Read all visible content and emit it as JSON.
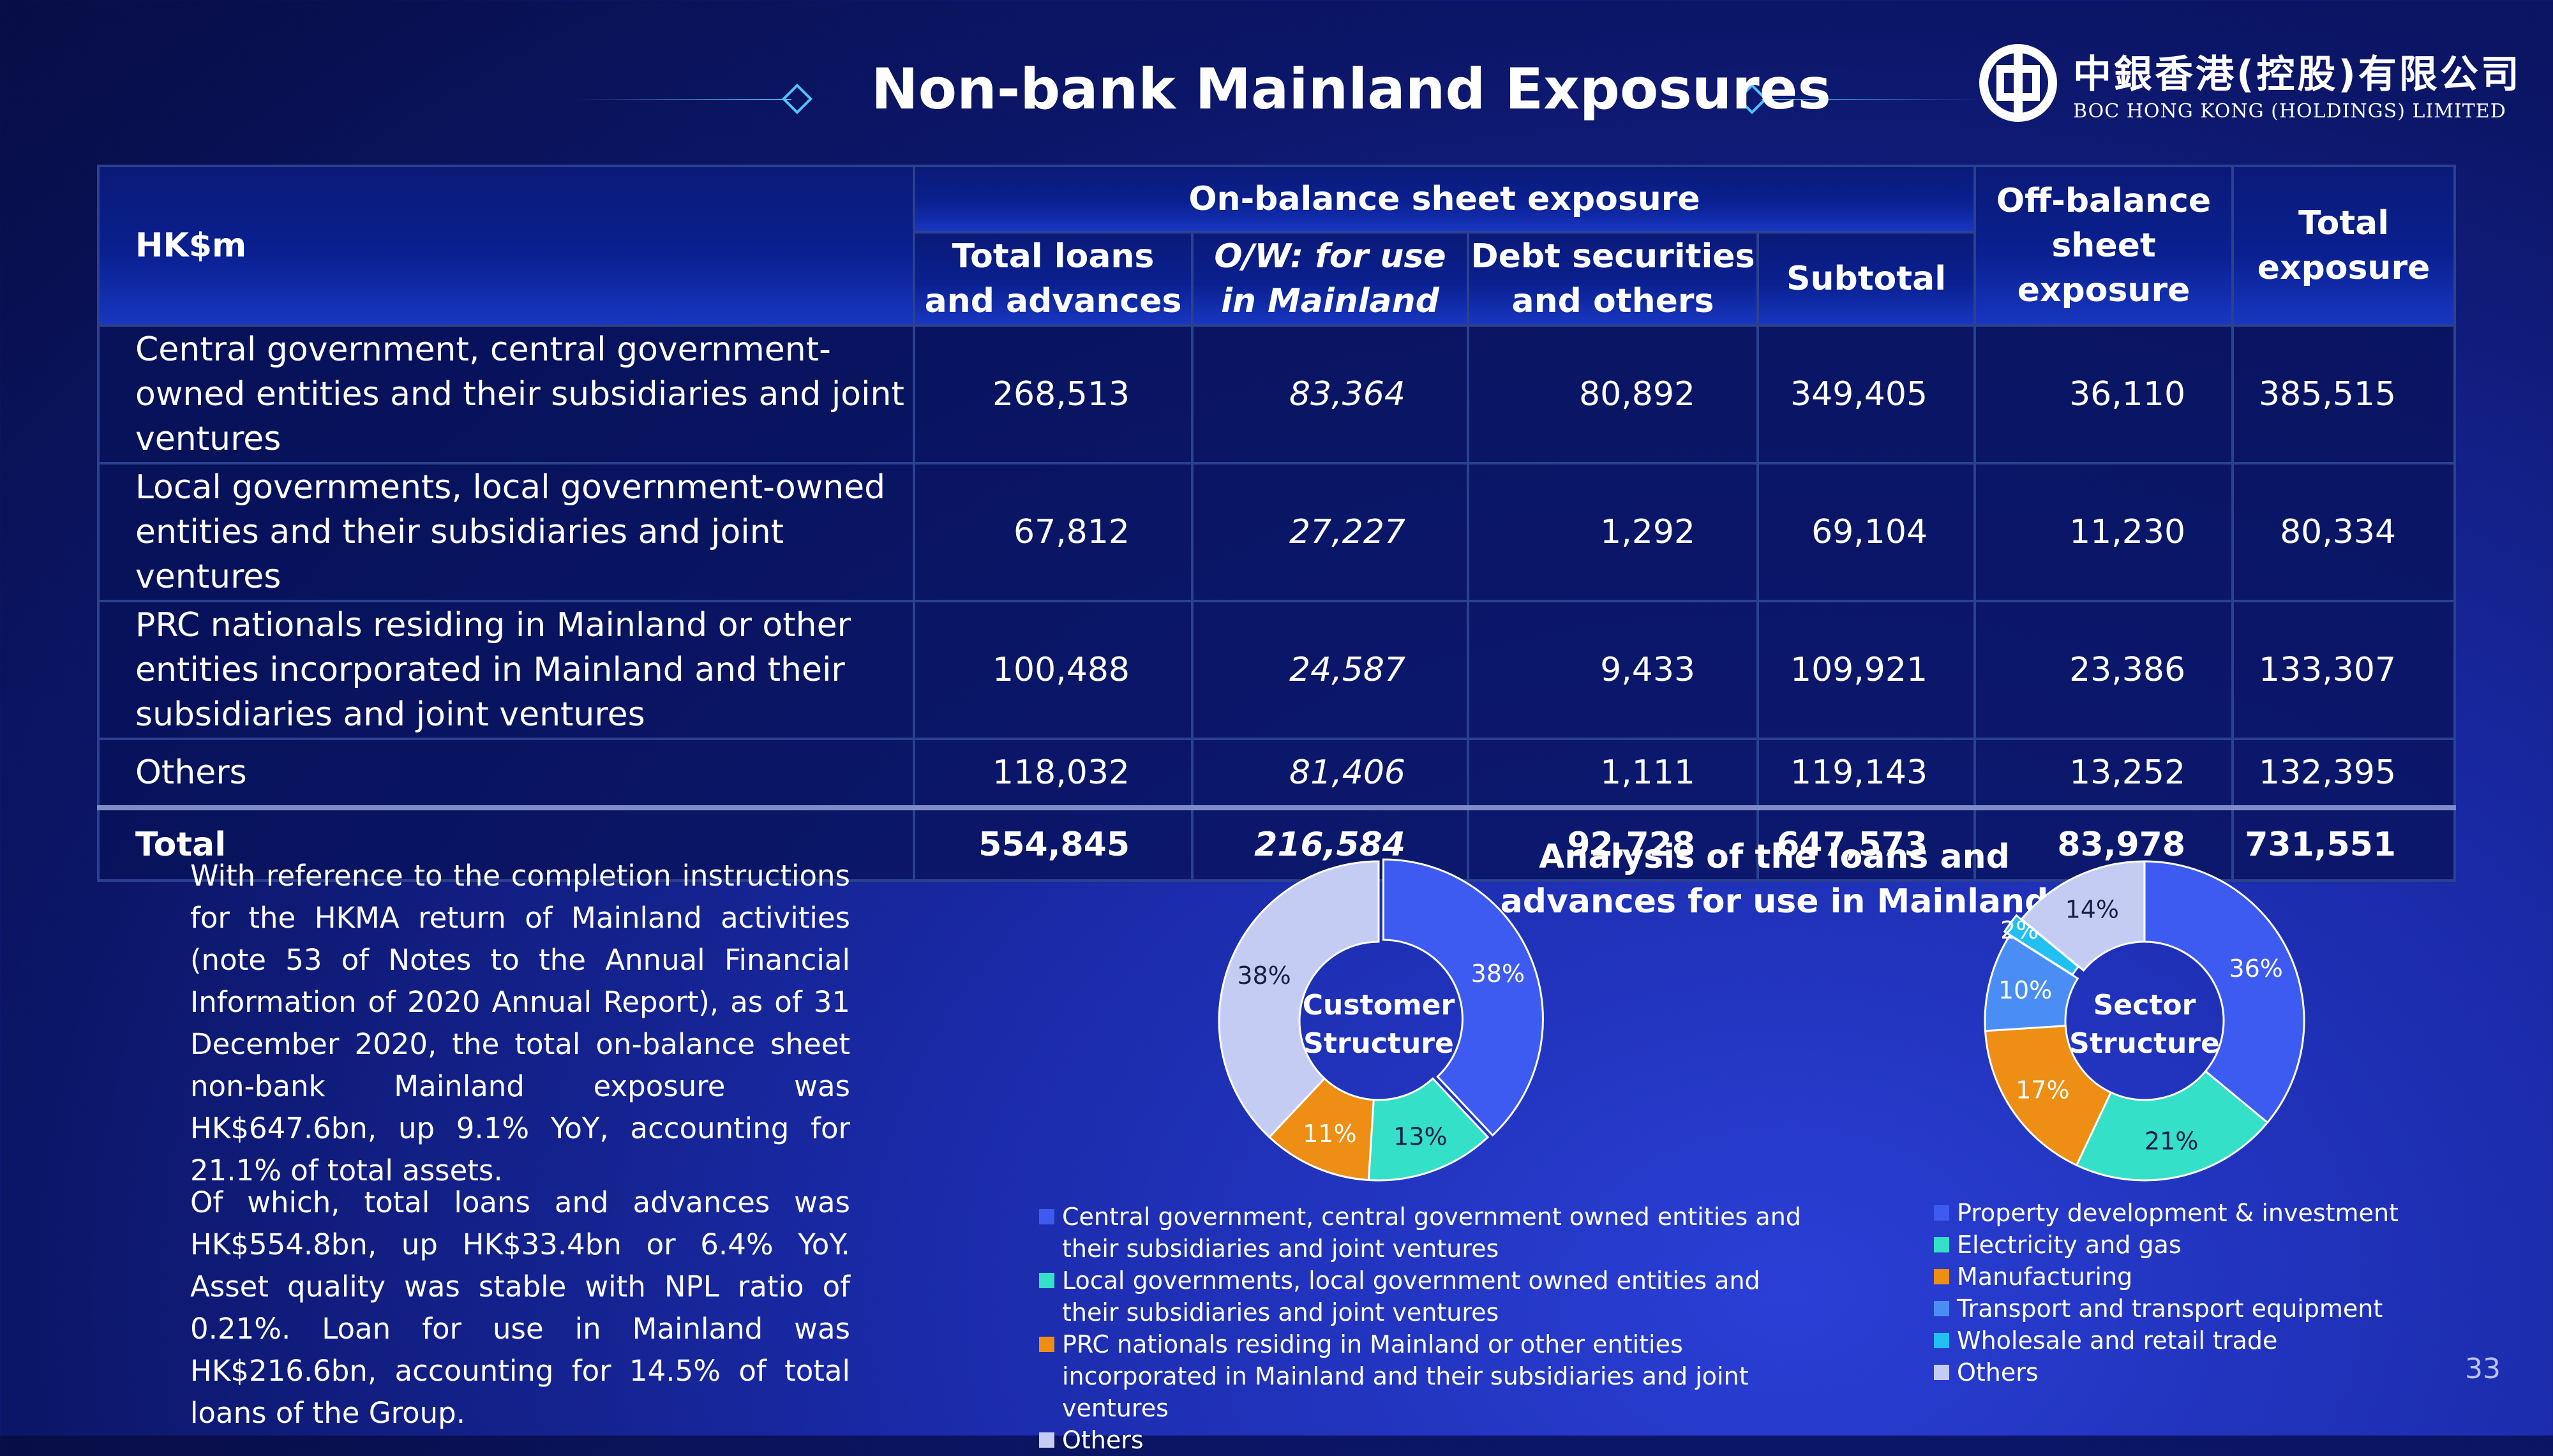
{
  "title": "Non-bank Mainland Exposures",
  "logo": {
    "cn": "中銀香港(控股)有限公司",
    "en": "BOC HONG KONG (HOLDINGS) LIMITED"
  },
  "page_number": "33",
  "table": {
    "unit_header": "HK$m",
    "group_header": "On-balance sheet exposure",
    "columns": [
      "Total loans and advances",
      "O/W: for use in Mainland",
      "Debt securities and others",
      "Subtotal",
      "Off-balance sheet exposure",
      "Total exposure"
    ],
    "rows": [
      {
        "label": "Central government, central government-owned entities and their subsidiaries and joint ventures",
        "values": [
          "268,513",
          "83,364",
          "80,892",
          "349,405",
          "36,110",
          "385,515"
        ]
      },
      {
        "label": "Local governments, local government-owned entities and their subsidiaries and joint ventures",
        "values": [
          "67,812",
          "27,227",
          "1,292",
          "69,104",
          "11,230",
          "80,334"
        ]
      },
      {
        "label": "PRC nationals residing in Mainland or other entities incorporated in Mainland and their subsidiaries and joint ventures",
        "values": [
          "100,488",
          "24,587",
          "9,433",
          "109,921",
          "23,386",
          "133,307"
        ]
      },
      {
        "label": "Others",
        "values": [
          "118,032",
          "81,406",
          "1,111",
          "119,143",
          "13,252",
          "132,395"
        ]
      }
    ],
    "total": {
      "label": "Total",
      "values": [
        "554,845",
        "216,584",
        "92,728",
        "647,573",
        "83,978",
        "731,551"
      ]
    }
  },
  "paragraphs": [
    "With reference to the completion instructions for the HKMA return of Mainland activities (note 53 of Notes to the Annual Financial Information of 2020 Annual Report), as of 31 December 2020, the total on-balance sheet non-bank Mainland exposure was HK$647.6bn, up 9.1% YoY, accounting for 21.1% of total assets.",
    "Of which, total loans and advances was HK$554.8bn, up HK$33.4bn or 6.4% YoY. Asset quality was stable with NPL ratio of 0.21%. Loan for use in Mainland was HK$216.6bn, accounting for 14.5% of total loans of the Group."
  ],
  "chart_title": "Analysis of  the loans and advances for use in Mainland",
  "chart_data": [
    {
      "type": "pie",
      "center_label": [
        "Customer",
        "Structure"
      ],
      "categories": [
        "Central government, central government owned entities and their subsidiaries and joint ventures",
        "Local governments, local government owned entities and their subsidiaries and joint ventures",
        "PRC nationals residing in Mainland or other entities incorporated in Mainland and their subsidiaries and joint ventures",
        "Others"
      ],
      "values": [
        38,
        13,
        11,
        38
      ],
      "data_labels": [
        "38%",
        "13%",
        "11%",
        "38%"
      ],
      "colors": [
        "#3d5bf0",
        "#35e0c8",
        "#ee8e14",
        "#c5ccf4"
      ]
    },
    {
      "type": "pie",
      "center_label": [
        "Sector",
        "Structure"
      ],
      "categories": [
        "Property development & investment",
        "Electricity and gas",
        "Manufacturing",
        "Transport and transport equipment",
        "Wholesale and retail trade",
        "Others"
      ],
      "values": [
        36,
        21,
        17,
        10,
        2,
        14
      ],
      "data_labels": [
        "36%",
        "21%",
        "17%",
        "10%",
        "2%",
        "14%"
      ],
      "colors": [
        "#3d5bf0",
        "#35e0c8",
        "#ee8e14",
        "#4a8ef5",
        "#22c0f2",
        "#c5ccf4"
      ]
    }
  ],
  "legend_left": [
    "Central government, central government owned entities and their subsidiaries and joint ventures",
    "Local governments, local government owned entities and their subsidiaries and joint ventures",
    "PRC nationals residing in Mainland or other entities incorporated in Mainland and their subsidiaries and joint ventures",
    "Others"
  ],
  "legend_right": [
    "Property development & investment",
    "Electricity and gas",
    "Manufacturing",
    "Transport and transport equipment",
    "Wholesale and retail trade",
    "Others"
  ]
}
